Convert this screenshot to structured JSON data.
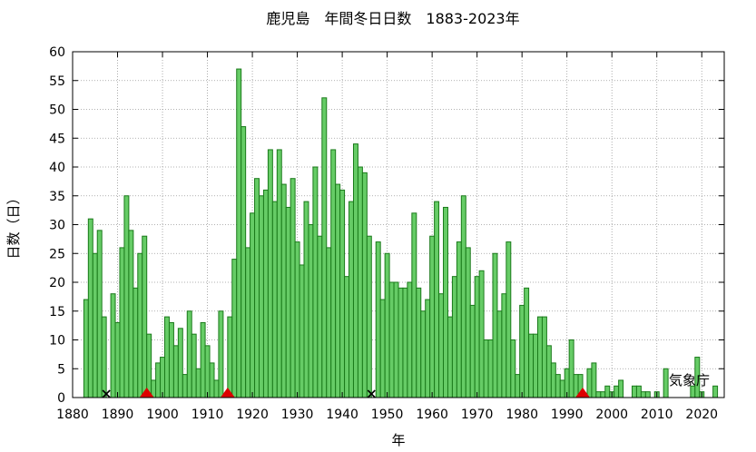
{
  "chart_data": {
    "type": "bar",
    "title": "鹿児島　年間冬日日数　1883-2023年",
    "xlabel": "年",
    "ylabel": "日数（日）",
    "credit": "気象庁",
    "xlim": [
      1880,
      2025
    ],
    "ylim": [
      0,
      60
    ],
    "xticks": [
      1880,
      1890,
      1900,
      1910,
      1920,
      1930,
      1940,
      1950,
      1960,
      1970,
      1980,
      1990,
      2000,
      2010,
      2020
    ],
    "yticks": [
      0,
      5,
      10,
      15,
      20,
      25,
      30,
      35,
      40,
      45,
      50,
      55,
      60
    ],
    "grid": true,
    "bar_color": "#66cc66",
    "bar_edge_color": "#1a7a1a",
    "x": [
      1883,
      1884,
      1885,
      1886,
      1887,
      1888,
      1889,
      1890,
      1891,
      1892,
      1893,
      1894,
      1895,
      1896,
      1897,
      1898,
      1899,
      1900,
      1901,
      1902,
      1903,
      1904,
      1905,
      1906,
      1907,
      1908,
      1909,
      1910,
      1911,
      1912,
      1913,
      1914,
      1915,
      1916,
      1917,
      1918,
      1919,
      1920,
      1921,
      1922,
      1923,
      1924,
      1925,
      1926,
      1927,
      1928,
      1929,
      1930,
      1931,
      1932,
      1933,
      1934,
      1935,
      1936,
      1937,
      1938,
      1939,
      1940,
      1941,
      1942,
      1943,
      1944,
      1945,
      1946,
      1947,
      1948,
      1949,
      1950,
      1951,
      1952,
      1953,
      1954,
      1955,
      1956,
      1957,
      1958,
      1959,
      1960,
      1961,
      1962,
      1963,
      1964,
      1965,
      1966,
      1967,
      1968,
      1969,
      1970,
      1971,
      1972,
      1973,
      1974,
      1975,
      1976,
      1977,
      1978,
      1979,
      1980,
      1981,
      1982,
      1983,
      1984,
      1985,
      1986,
      1987,
      1988,
      1989,
      1990,
      1991,
      1992,
      1993,
      1994,
      1995,
      1996,
      1997,
      1998,
      1999,
      2000,
      2001,
      2002,
      2003,
      2004,
      2005,
      2006,
      2007,
      2008,
      2009,
      2010,
      2011,
      2012,
      2013,
      2014,
      2015,
      2016,
      2017,
      2018,
      2019,
      2020,
      2021,
      2022,
      2023
    ],
    "values": [
      17,
      31,
      25,
      29,
      14,
      0,
      18,
      13,
      26,
      35,
      29,
      19,
      25,
      28,
      11,
      3,
      6,
      7,
      14,
      13,
      9,
      12,
      4,
      15,
      11,
      5,
      13,
      9,
      6,
      3,
      15,
      0,
      14,
      24,
      57,
      47,
      26,
      32,
      38,
      35,
      36,
      43,
      34,
      43,
      37,
      33,
      38,
      27,
      23,
      34,
      30,
      40,
      28,
      52,
      26,
      43,
      37,
      36,
      21,
      34,
      44,
      40,
      39,
      28,
      0,
      27,
      17,
      25,
      20,
      20,
      19,
      19,
      20,
      32,
      19,
      15,
      17,
      28,
      34,
      18,
      33,
      14,
      21,
      27,
      35,
      26,
      16,
      21,
      22,
      10,
      10,
      25,
      15,
      18,
      27,
      10,
      4,
      16,
      19,
      11,
      11,
      14,
      14,
      9,
      6,
      4,
      3,
      5,
      10,
      4,
      4,
      0,
      5,
      6,
      1,
      1,
      2,
      1,
      2,
      3,
      0,
      0,
      2,
      2,
      1,
      1,
      0,
      1,
      0,
      5,
      0,
      0,
      0,
      0,
      0,
      2,
      7,
      1,
      0,
      0,
      2
    ],
    "markers": [
      {
        "year": 1887.5,
        "value": 0,
        "symbol": "x",
        "color": "#000000"
      },
      {
        "year": 1896.5,
        "value": 0,
        "symbol": "triangle",
        "color": "#dd0000"
      },
      {
        "year": 1914.5,
        "value": 0,
        "symbol": "triangle",
        "color": "#dd0000"
      },
      {
        "year": 1946.5,
        "value": 0,
        "symbol": "x",
        "color": "#000000"
      },
      {
        "year": 1993.5,
        "value": 0,
        "symbol": "triangle",
        "color": "#dd0000"
      }
    ]
  }
}
